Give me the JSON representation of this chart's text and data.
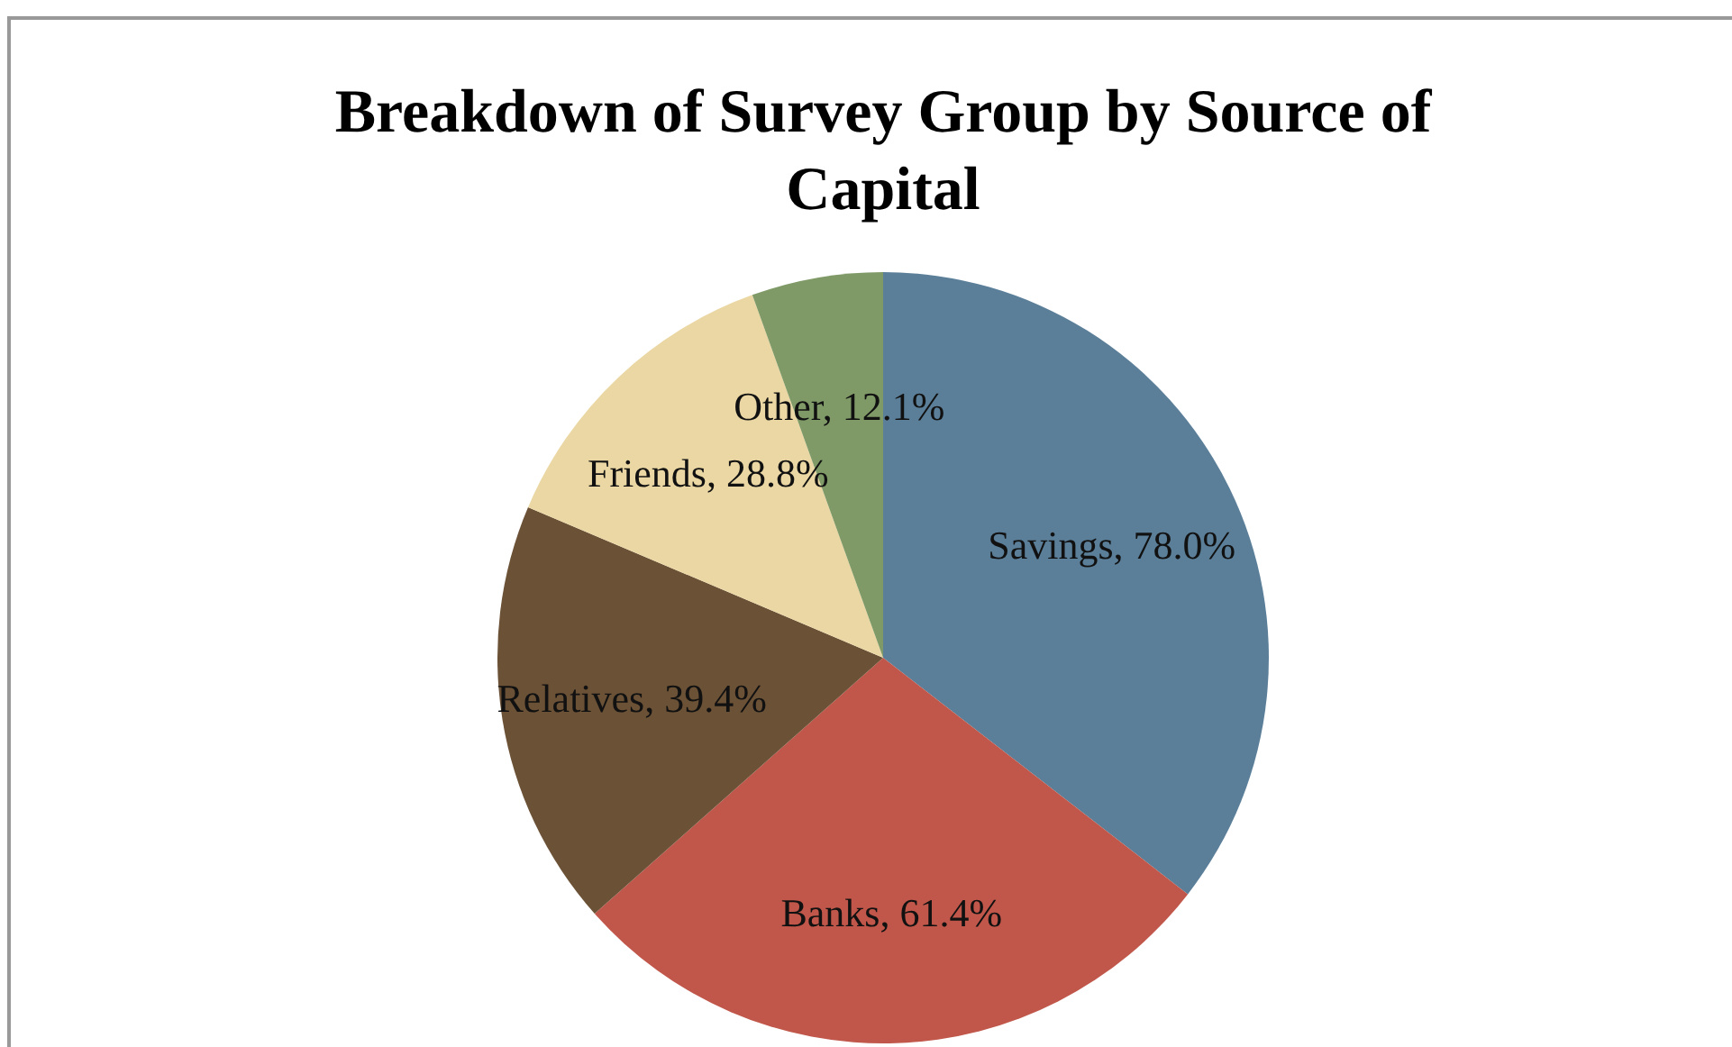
{
  "chart_data": {
    "type": "pie",
    "title": "Breakdown of Survey Group by Source of Capital",
    "categories": [
      "Savings",
      "Banks",
      "Relatives",
      "Friends",
      "Other"
    ],
    "value_labels": [
      "78.0%",
      "61.4%",
      "39.4%",
      "28.8%",
      "12.1%"
    ],
    "values": [
      78.0,
      61.4,
      39.4,
      28.8,
      12.1
    ],
    "colors": [
      "#5b7f99",
      "#c0574a",
      "#6b5136",
      "#ead7a3",
      "#7f9a67"
    ]
  }
}
